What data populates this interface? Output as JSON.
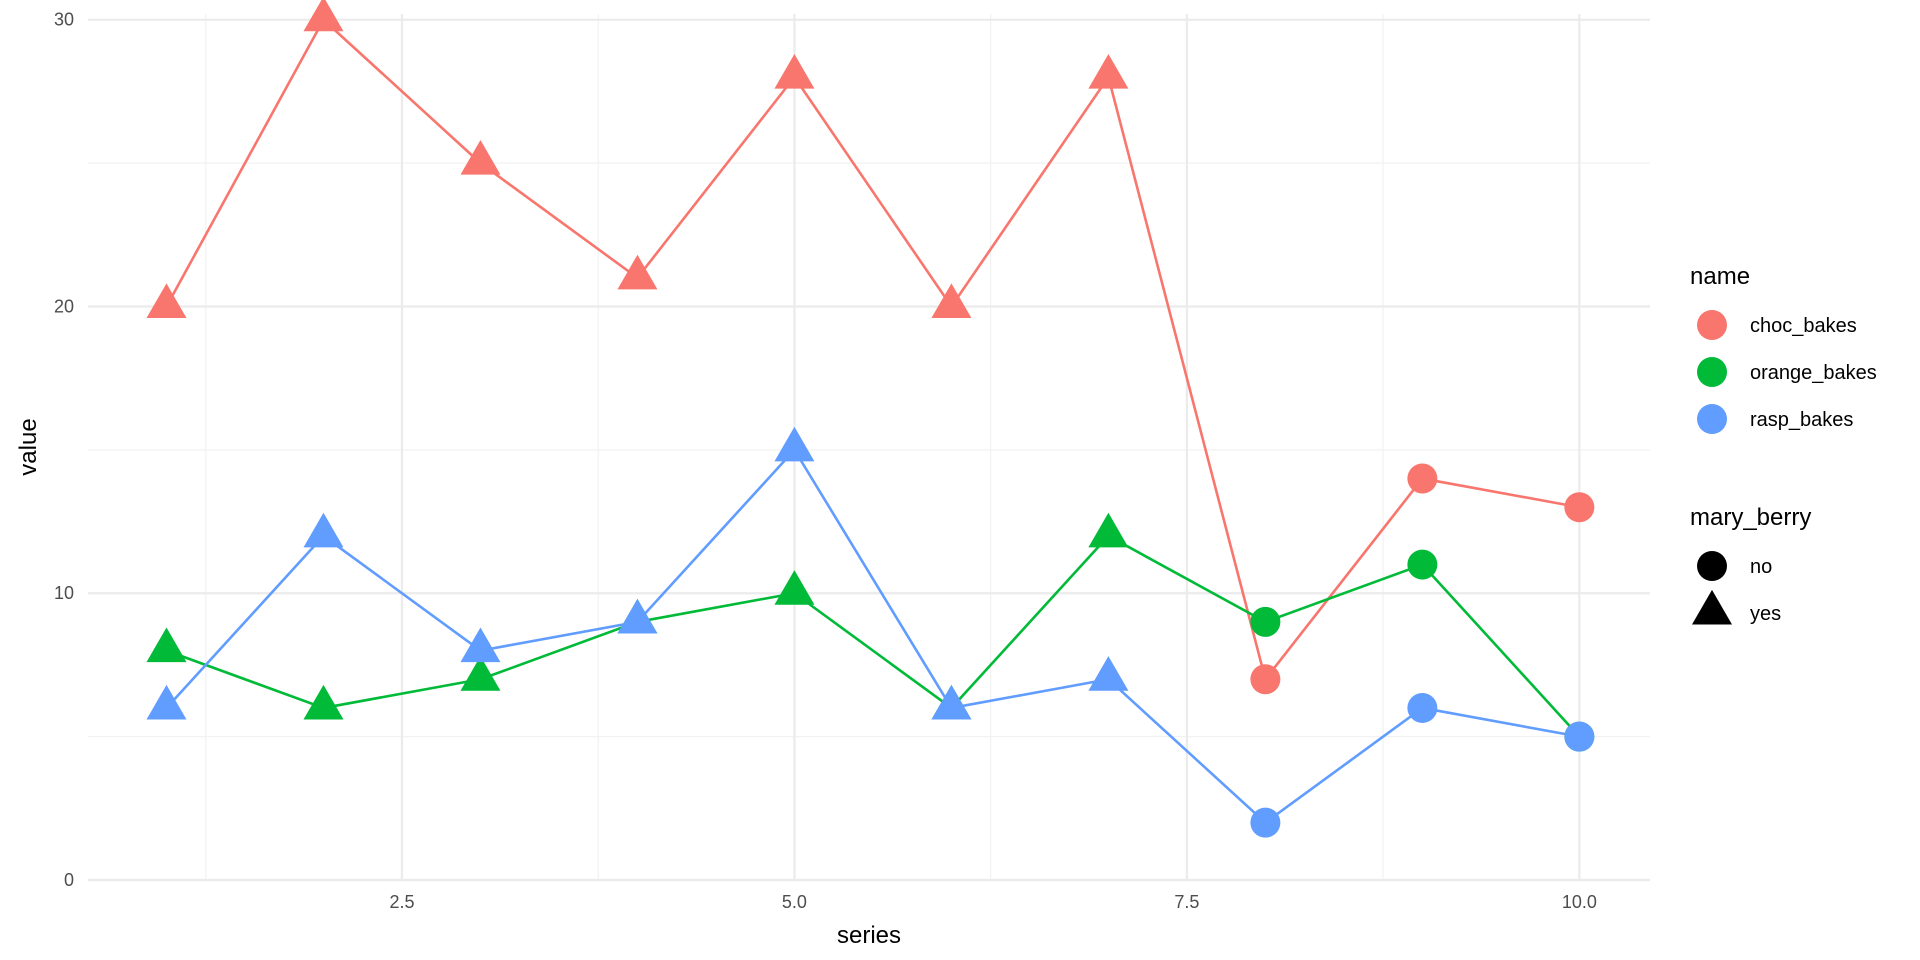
{
  "chart_data": {
    "type": "line",
    "xlabel": "series",
    "ylabel": "value",
    "xlim": [
      0.5,
      10.45
    ],
    "ylim": [
      0,
      30.2
    ],
    "x_ticks": [
      2.5,
      5.0,
      7.5,
      10.0
    ],
    "x_tick_labels": [
      "2.5",
      "5.0",
      "7.5",
      "10.0"
    ],
    "y_ticks": [
      0,
      10,
      20,
      30
    ],
    "y_tick_labels": [
      "0",
      "10",
      "20",
      "30"
    ],
    "grid": true,
    "legend_placement": "right",
    "x": [
      1,
      2,
      3,
      4,
      5,
      6,
      7,
      8,
      9,
      10
    ],
    "series": [
      {
        "name": "choc_bakes",
        "color": "#F8766D",
        "values": [
          20,
          30,
          25,
          21,
          28,
          20,
          28,
          7,
          14,
          13
        ]
      },
      {
        "name": "orange_bakes",
        "color": "#00BA38",
        "values": [
          8,
          6,
          7,
          9,
          10,
          6,
          12,
          9,
          11,
          5
        ]
      },
      {
        "name": "rasp_bakes",
        "color": "#619CFF",
        "values": [
          6,
          12,
          8,
          9,
          15,
          6,
          7,
          2,
          6,
          5
        ]
      }
    ],
    "mary_berry": [
      "yes",
      "yes",
      "yes",
      "yes",
      "yes",
      "yes",
      "yes",
      "no",
      "no",
      "no"
    ],
    "legend": {
      "color_title": "name",
      "color_entries": [
        "choc_bakes",
        "orange_bakes",
        "rasp_bakes"
      ],
      "shape_title": "mary_berry",
      "shape_entries": [
        {
          "label": "no",
          "shape": "circle"
        },
        {
          "label": "yes",
          "shape": "triangle"
        }
      ]
    }
  }
}
